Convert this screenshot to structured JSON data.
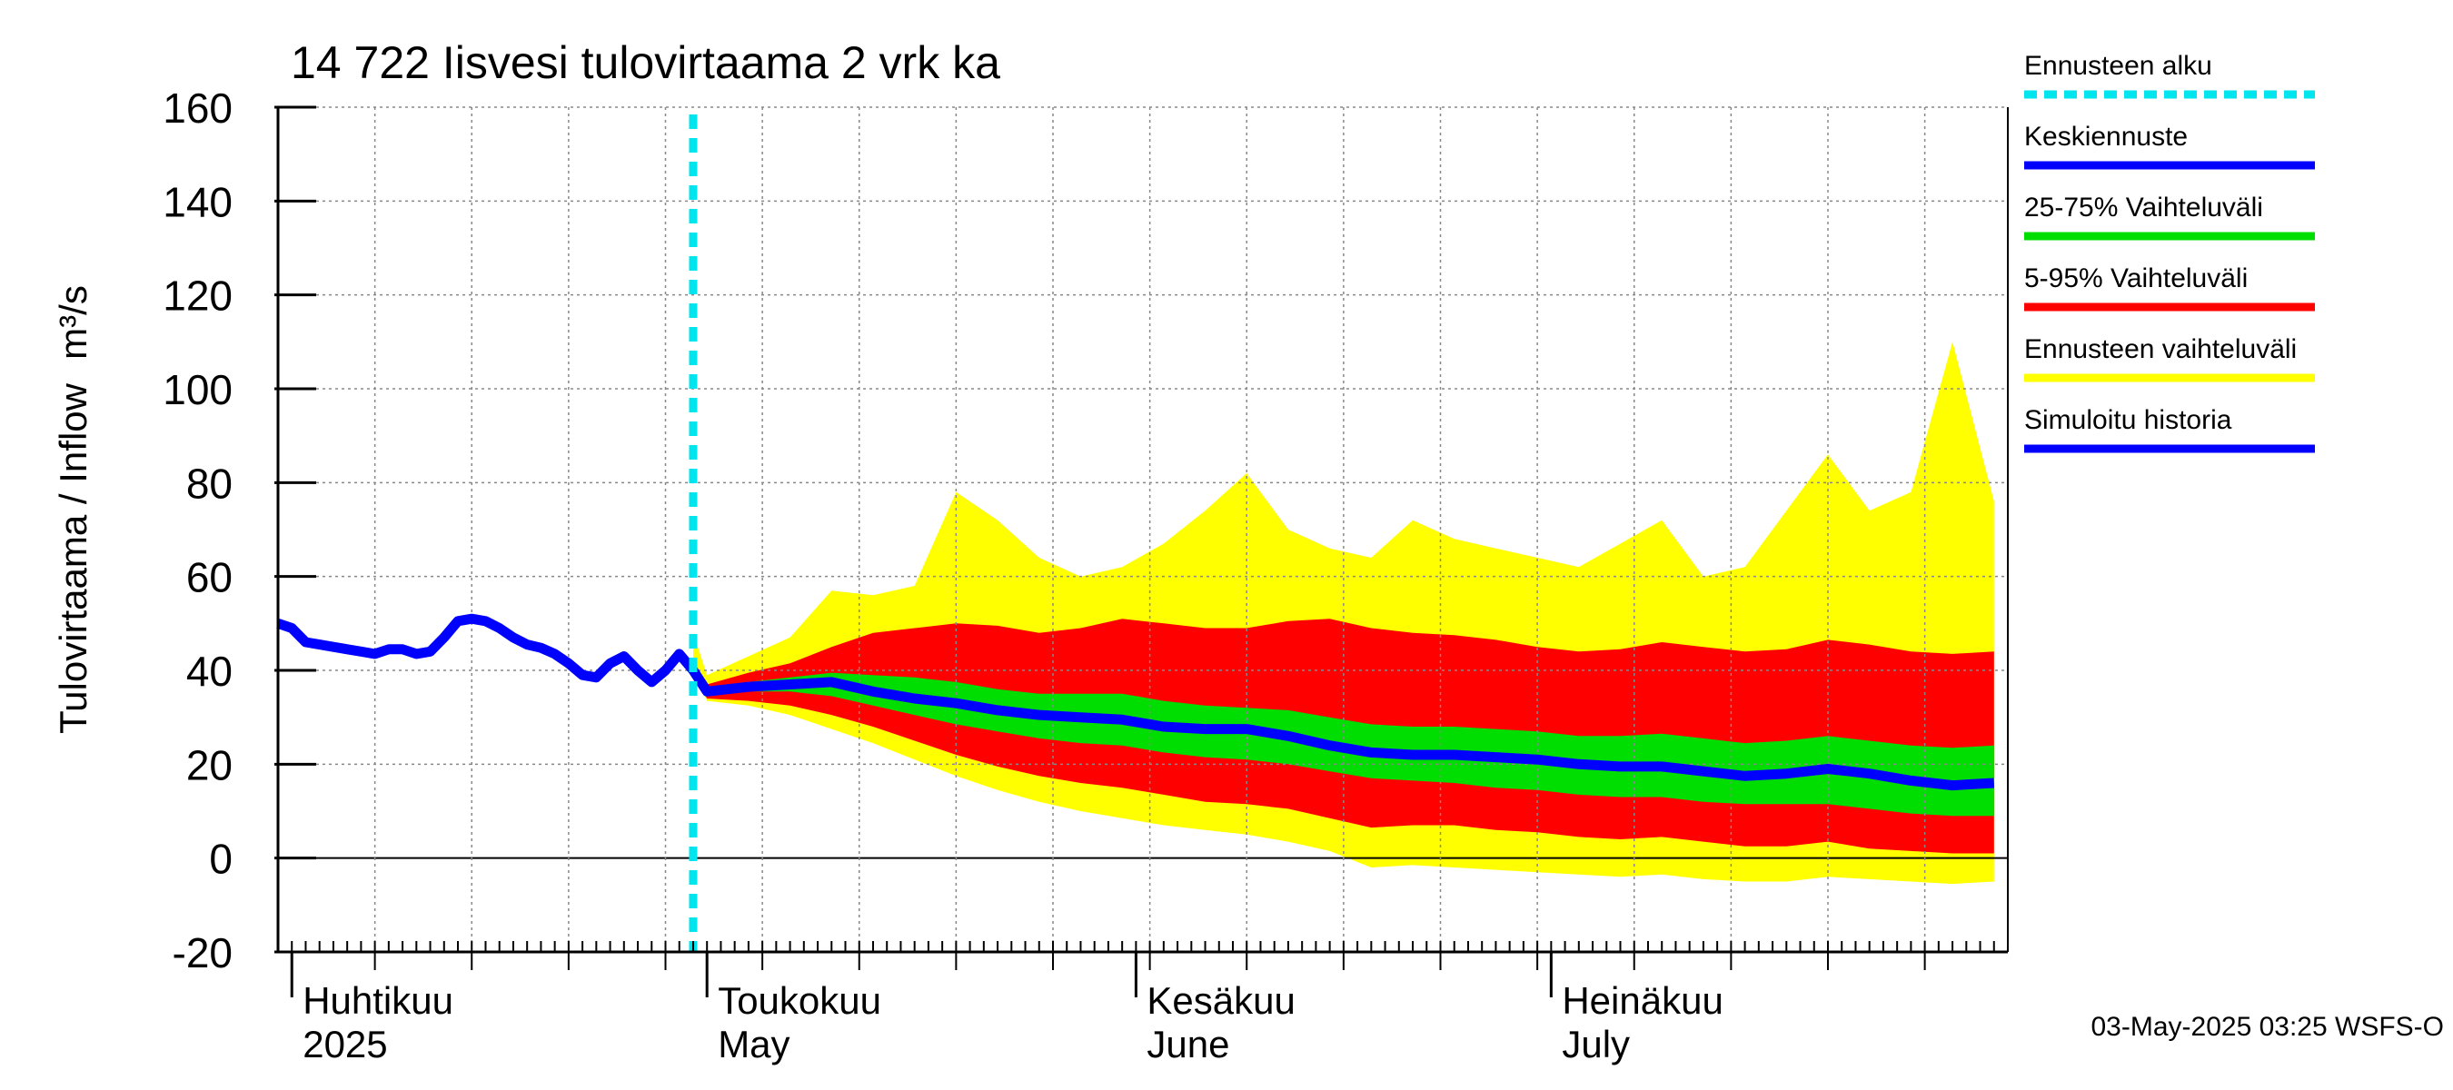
{
  "chart_data": {
    "type": "area",
    "title": "14 722 Iisvesi tulovirtaama 2 vrk ka",
    "ylabel": "Tulovirtaama / Inflow",
    "yunit": "m³/s",
    "ylim": [
      -20,
      160
    ],
    "yticks": [
      "160",
      "140",
      "120",
      "100",
      "80",
      "60",
      "40",
      "20",
      "0",
      "-20"
    ],
    "xlim": [
      "2025-03-31",
      "2025-08-03"
    ],
    "month_labels": [
      {
        "fi": "Huhtikuu",
        "en": "2025",
        "date": "2025-04-01"
      },
      {
        "fi": "Toukokuu",
        "en": "May",
        "date": "2025-05-01"
      },
      {
        "fi": "Kesäkuu",
        "en": "June",
        "date": "2025-06-01"
      },
      {
        "fi": "Heinäkuu",
        "en": "July",
        "date": "2025-07-01"
      }
    ],
    "forecast_start": "2025-04-30",
    "grid": true,
    "legend_position": "right",
    "legend": [
      {
        "label": "Ennusteen alku",
        "color": "#00e5ee",
        "style": "dashed"
      },
      {
        "label": "Keskiennuste",
        "color": "#0000ff",
        "style": "solid"
      },
      {
        "label": "25-75% Vaihteluväli",
        "color": "#00dd00",
        "style": "solid"
      },
      {
        "label": "5-95% Vaihteluväli",
        "color": "#ff0000",
        "style": "solid"
      },
      {
        "label": "Ennusteen vaihteluväli",
        "color": "#ffff00",
        "style": "solid"
      },
      {
        "label": "Simuloitu historia",
        "color": "#0000ff",
        "style": "solid"
      }
    ],
    "history": {
      "name": "Simuloitu historia",
      "x": [
        "2025-03-31",
        "2025-04-01",
        "2025-04-02",
        "2025-04-03",
        "2025-04-04",
        "2025-04-05",
        "2025-04-06",
        "2025-04-07",
        "2025-04-08",
        "2025-04-09",
        "2025-04-10",
        "2025-04-11",
        "2025-04-12",
        "2025-04-13",
        "2025-04-14",
        "2025-04-15",
        "2025-04-16",
        "2025-04-17",
        "2025-04-18",
        "2025-04-19",
        "2025-04-20",
        "2025-04-21",
        "2025-04-22",
        "2025-04-23",
        "2025-04-24",
        "2025-04-25",
        "2025-04-26",
        "2025-04-27",
        "2025-04-28",
        "2025-04-29",
        "2025-04-30"
      ],
      "y": [
        50,
        49,
        46,
        45.5,
        45,
        44.5,
        44,
        43.5,
        44.5,
        44.5,
        43.5,
        44,
        47,
        50.5,
        51,
        50.5,
        49,
        47,
        45.5,
        44.8,
        43.5,
        41.5,
        39,
        38.5,
        41.5,
        43,
        40,
        37.5,
        40,
        43.5,
        40
      ]
    },
    "forecast": {
      "x": [
        "2025-04-30",
        "2025-05-01",
        "2025-05-04",
        "2025-05-07",
        "2025-05-10",
        "2025-05-13",
        "2025-05-16",
        "2025-05-19",
        "2025-05-22",
        "2025-05-25",
        "2025-05-28",
        "2025-05-31",
        "2025-06-03",
        "2025-06-06",
        "2025-06-09",
        "2025-06-12",
        "2025-06-15",
        "2025-06-18",
        "2025-06-21",
        "2025-06-24",
        "2025-06-27",
        "2025-06-30",
        "2025-07-03",
        "2025-07-06",
        "2025-07-09",
        "2025-07-12",
        "2025-07-15",
        "2025-07-18",
        "2025-07-21",
        "2025-07-24",
        "2025-07-27",
        "2025-07-30",
        "2025-08-02"
      ],
      "median": [
        40,
        35.5,
        36.5,
        37,
        37.5,
        35.5,
        34,
        33,
        31.5,
        30.5,
        30,
        29.5,
        28,
        27.5,
        27.5,
        26,
        24,
        22.5,
        22,
        22,
        21.5,
        21,
        20,
        19.5,
        19.5,
        18.5,
        17.5,
        18,
        19,
        18,
        16.5,
        15.5,
        16
      ],
      "q25": [
        40,
        35,
        35.5,
        35.5,
        34.5,
        32.5,
        30.5,
        28.5,
        27,
        25.5,
        24.5,
        24,
        22.5,
        21.5,
        21,
        20,
        18.5,
        17,
        16.5,
        16,
        15,
        14.5,
        13.5,
        13,
        13,
        12,
        11.5,
        11.5,
        11.5,
        10.5,
        9.5,
        9,
        9
      ],
      "q75": [
        40,
        36,
        37.5,
        38.5,
        39.5,
        39,
        38.5,
        37.5,
        36,
        35,
        35,
        35,
        33.5,
        32.5,
        32,
        31.5,
        30,
        28.5,
        28,
        28,
        27.5,
        27,
        26,
        26,
        26.5,
        25.5,
        24.5,
        25,
        26,
        25,
        24,
        23.5,
        24
      ],
      "p5": [
        40,
        34,
        33.5,
        32.5,
        30.5,
        28,
        25,
        22,
        19.5,
        17.5,
        16,
        15,
        13.5,
        12,
        11.5,
        10.5,
        8.5,
        6.5,
        7,
        7,
        6,
        5.5,
        4.5,
        4,
        4.5,
        3.5,
        2.5,
        2.5,
        3.5,
        2,
        1.5,
        1,
        1
      ],
      "p95": [
        40,
        37,
        39.5,
        41.5,
        45,
        48,
        49,
        50,
        49.5,
        48,
        49,
        51,
        50,
        49,
        49,
        50.5,
        51,
        49,
        48,
        47.5,
        46.5,
        45,
        44,
        44.5,
        46,
        45,
        44,
        44.5,
        46.5,
        45.5,
        44,
        43.5,
        44
      ],
      "min": [
        40,
        33.5,
        32.5,
        30.5,
        27.5,
        24.5,
        21,
        17.5,
        14.5,
        12,
        10,
        8.5,
        7,
        6,
        5,
        3.5,
        1.5,
        -2,
        -1.5,
        -2,
        -2.5,
        -3,
        -3.5,
        -4,
        -3.5,
        -4.5,
        -5,
        -5,
        -4,
        -4.5,
        -5,
        -5.5,
        -5
      ],
      "max": [
        48,
        39,
        43,
        47,
        57,
        56,
        58,
        78,
        72,
        64,
        60,
        62,
        67,
        74,
        82,
        70,
        66,
        64,
        72,
        68,
        66,
        64,
        62,
        67,
        72,
        60,
        62,
        74,
        86,
        74,
        78,
        110,
        76
      ]
    }
  },
  "footer": {
    "timestamp": "03-May-2025 03:25 WSFS-O"
  }
}
